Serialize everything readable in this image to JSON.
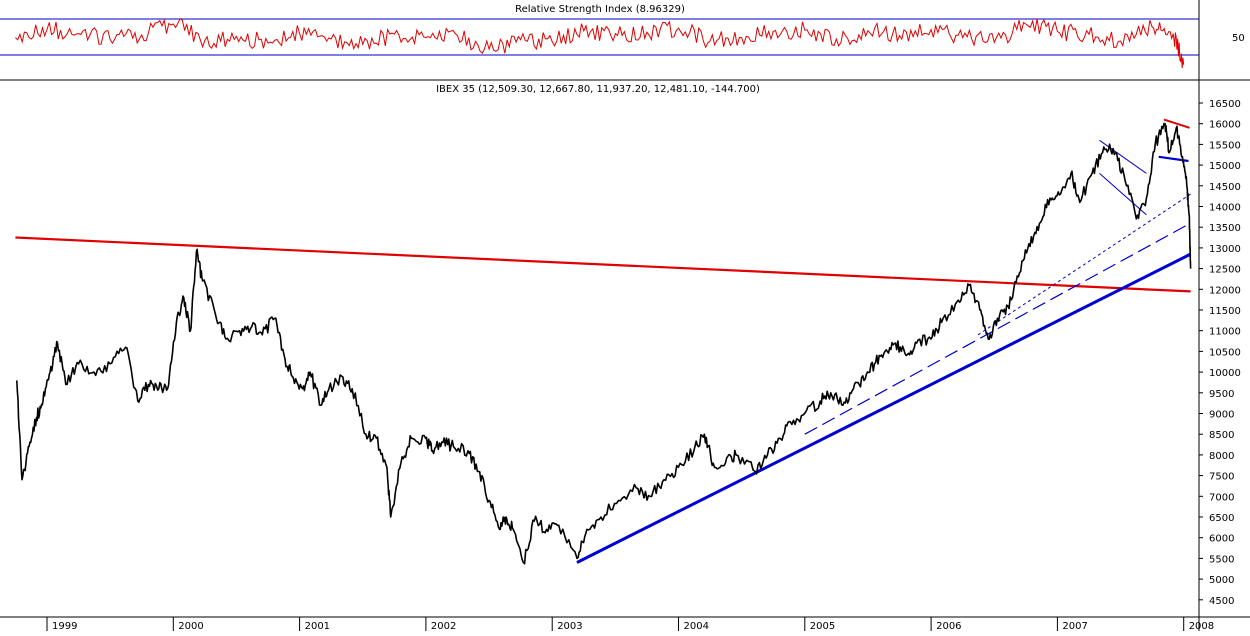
{
  "colors": {
    "background": "#ffffff",
    "price_line": "#000000",
    "rsi_line": "#e00000",
    "rsi_bands": "#0000c8",
    "resistance_line": "#e00000",
    "trendline": "#0000d0",
    "axis": "#000000"
  },
  "rsi_panel": {
    "title": "Relative Strength Index (8.96329)",
    "level_label": "50",
    "upper_band": 70,
    "lower_band": 30
  },
  "price_panel": {
    "title": "IBEX 35 (12,509.30, 12,667.80, 11,937.20, 12,481.10, -144.700)"
  },
  "chart_data": [
    {
      "type": "line",
      "title": "Relative Strength Index (8.96329)",
      "ylim": [
        0,
        100
      ],
      "y_ticks": [
        50
      ],
      "bands": [
        30,
        70
      ],
      "grid": false,
      "series": [
        {
          "approx_points": [
            [
              "1998-10",
              52
            ],
            [
              "1999-01",
              64
            ],
            [
              "1999-04",
              58
            ],
            [
              "1999-07",
              49
            ],
            [
              "1999-10",
              56
            ],
            [
              "2000-01",
              72
            ],
            [
              "2000-04",
              48
            ],
            [
              "2000-07",
              54
            ],
            [
              "2000-10",
              44
            ],
            [
              "2001-01",
              58
            ],
            [
              "2001-04",
              50
            ],
            [
              "2001-07",
              42
            ],
            [
              "2001-10",
              57
            ],
            [
              "2002-01",
              52
            ],
            [
              "2002-04",
              55
            ],
            [
              "2002-07",
              35
            ],
            [
              "2002-10",
              49
            ],
            [
              "2003-01",
              46
            ],
            [
              "2003-04",
              62
            ],
            [
              "2003-07",
              58
            ],
            [
              "2003-10",
              60
            ],
            [
              "2004-01",
              66
            ],
            [
              "2004-04",
              47
            ],
            [
              "2004-07",
              52
            ],
            [
              "2004-10",
              61
            ],
            [
              "2005-01",
              63
            ],
            [
              "2005-04",
              50
            ],
            [
              "2005-07",
              62
            ],
            [
              "2005-10",
              55
            ],
            [
              "2006-01",
              64
            ],
            [
              "2006-04",
              52
            ],
            [
              "2006-07",
              45
            ],
            [
              "2006-10",
              72
            ],
            [
              "2007-01",
              61
            ],
            [
              "2007-04",
              57
            ],
            [
              "2007-07",
              47
            ],
            [
              "2007-10",
              68
            ],
            [
              "2007-12",
              58
            ],
            [
              "2008-01",
              12
            ]
          ]
        }
      ]
    },
    {
      "type": "line",
      "title": "IBEX 35 (12,509.30, 12,667.80, 11,937.20, 12,481.10, -144.700)",
      "x_tick_labels": [
        "1999",
        "2000",
        "2001",
        "2002",
        "2003",
        "2004",
        "2005",
        "2006",
        "2007",
        "2008"
      ],
      "y_tick_labels": [
        "4500",
        "5000",
        "5500",
        "6000",
        "6500",
        "7000",
        "7500",
        "8000",
        "8500",
        "9000",
        "9500",
        "10000",
        "10500",
        "11000",
        "11500",
        "12000",
        "12500",
        "13000",
        "13500",
        "14000",
        "14500",
        "15000",
        "15500",
        "16000",
        "16500"
      ],
      "ylim": [
        4150,
        16900
      ],
      "grid": false,
      "series": [
        {
          "kind": "price",
          "points": [
            [
              "1998-10-05",
              9800
            ],
            [
              "1998-10-20",
              7400
            ],
            [
              "1998-11-10",
              8200
            ],
            [
              "1998-12-01",
              8900
            ],
            [
              "1998-12-20",
              9300
            ],
            [
              "1999-01-10",
              10000
            ],
            [
              "1999-02-01",
              10700
            ],
            [
              "1999-02-25",
              9700
            ],
            [
              "1999-04-01",
              10200
            ],
            [
              "1999-05-15",
              10000
            ],
            [
              "1999-07-01",
              10200
            ],
            [
              "1999-08-15",
              10600
            ],
            [
              "1999-09-20",
              9300
            ],
            [
              "1999-10-20",
              9700
            ],
            [
              "1999-11-20",
              9600
            ],
            [
              "1999-12-15",
              9600
            ],
            [
              "2000-01-10",
              11200
            ],
            [
              "2000-02-01",
              11800
            ],
            [
              "2000-02-20",
              11000
            ],
            [
              "2000-03-07",
              12900
            ],
            [
              "2000-03-25",
              12200
            ],
            [
              "2000-05-01",
              11400
            ],
            [
              "2000-06-01",
              10800
            ],
            [
              "2000-07-10",
              11000
            ],
            [
              "2000-08-15",
              11100
            ],
            [
              "2000-09-15",
              10900
            ],
            [
              "2000-10-20",
              11300
            ],
            [
              "2000-11-20",
              10300
            ],
            [
              "2000-12-10",
              9900
            ],
            [
              "2001-01-10",
              9600
            ],
            [
              "2001-02-01",
              10000
            ],
            [
              "2001-03-01",
              9200
            ],
            [
              "2001-03-20",
              9500
            ],
            [
              "2001-05-01",
              9900
            ],
            [
              "2001-06-01",
              9600
            ],
            [
              "2001-07-10",
              8500
            ],
            [
              "2001-08-10",
              8400
            ],
            [
              "2001-09-10",
              7700
            ],
            [
              "2001-09-21",
              6500
            ],
            [
              "2001-10-20",
              7800
            ],
            [
              "2001-11-20",
              8400
            ],
            [
              "2001-12-31",
              8400
            ],
            [
              "2002-01-20",
              8100
            ],
            [
              "2002-02-20",
              8300
            ],
            [
              "2002-03-20",
              8200
            ],
            [
              "2002-05-01",
              8100
            ],
            [
              "2002-06-01",
              7600
            ],
            [
              "2002-07-01",
              6900
            ],
            [
              "2002-08-01",
              6200
            ],
            [
              "2002-08-20",
              6500
            ],
            [
              "2002-09-10",
              6200
            ],
            [
              "2002-10-09",
              5400
            ],
            [
              "2002-11-10",
              6400
            ],
            [
              "2002-12-15",
              6200
            ],
            [
              "2003-01-20",
              6300
            ],
            [
              "2003-03-12",
              5500
            ],
            [
              "2003-04-10",
              6200
            ],
            [
              "2003-05-20",
              6500
            ],
            [
              "2003-07-10",
              6900
            ],
            [
              "2003-09-01",
              7200
            ],
            [
              "2003-10-10",
              7000
            ],
            [
              "2003-11-20",
              7400
            ],
            [
              "2003-12-31",
              7700
            ],
            [
              "2004-02-15",
              8100
            ],
            [
              "2004-03-15",
              8500
            ],
            [
              "2004-04-10",
              7800
            ],
            [
              "2004-05-15",
              7800
            ],
            [
              "2004-06-15",
              8000
            ],
            [
              "2004-08-10",
              7600
            ],
            [
              "2004-09-15",
              8000
            ],
            [
              "2004-10-20",
              8400
            ],
            [
              "2004-11-20",
              8800
            ],
            [
              "2004-12-31",
              9000
            ],
            [
              "2005-02-15",
              9300
            ],
            [
              "2005-03-15",
              9500
            ],
            [
              "2005-04-20",
              9200
            ],
            [
              "2005-05-20",
              9600
            ],
            [
              "2005-06-20",
              9800
            ],
            [
              "2005-07-20",
              10200
            ],
            [
              "2005-08-20",
              10500
            ],
            [
              "2005-09-20",
              10700
            ],
            [
              "2005-10-20",
              10400
            ],
            [
              "2005-11-20",
              10700
            ],
            [
              "2005-12-31",
              10800
            ],
            [
              "2006-02-01",
              11200
            ],
            [
              "2006-03-15",
              11700
            ],
            [
              "2006-04-20",
              12100
            ],
            [
              "2006-05-20",
              11500
            ],
            [
              "2006-06-14",
              10800
            ],
            [
              "2006-07-10",
              11300
            ],
            [
              "2006-08-10",
              11600
            ],
            [
              "2006-09-10",
              12300
            ],
            [
              "2006-10-10",
              13100
            ],
            [
              "2006-11-10",
              13600
            ],
            [
              "2006-12-10",
              14200
            ],
            [
              "2007-01-10",
              14300
            ],
            [
              "2007-02-10",
              14800
            ],
            [
              "2007-03-05",
              14100
            ],
            [
              "2007-04-10",
              14800
            ],
            [
              "2007-05-10",
              15300
            ],
            [
              "2007-06-10",
              15400
            ],
            [
              "2007-07-10",
              14800
            ],
            [
              "2007-08-16",
              13700
            ],
            [
              "2007-09-15",
              14200
            ],
            [
              "2007-10-10",
              15500
            ],
            [
              "2007-11-08",
              16000
            ],
            [
              "2007-11-20",
              15300
            ],
            [
              "2007-12-10",
              15900
            ],
            [
              "2007-12-28",
              15200
            ],
            [
              "2008-01-10",
              14500
            ],
            [
              "2008-01-17",
              13800
            ],
            [
              "2008-01-21",
              12500
            ]
          ]
        },
        {
          "kind": "resistance",
          "points": [
            [
              "1998-10-01",
              13250
            ],
            [
              "2008-01-21",
              11950
            ]
          ]
        },
        {
          "kind": "support",
          "points": [
            [
              "2003-03-12",
              5400
            ],
            [
              "2008-01-21",
              12850
            ]
          ]
        },
        {
          "kind": "support_dashed",
          "points": [
            [
              "2005-01-01",
              8500
            ],
            [
              "2008-01-21",
              13600
            ]
          ]
        },
        {
          "kind": "support_dotted",
          "points": [
            [
              "2006-05-15",
              10900
            ],
            [
              "2008-01-21",
              14300
            ]
          ]
        },
        {
          "kind": "upper_channel",
          "points": [
            [
              "2007-05-01",
              15600
            ],
            [
              "2007-09-15",
              14800
            ]
          ]
        },
        {
          "kind": "lower_channel",
          "points": [
            [
              "2007-05-01",
              14800
            ],
            [
              "2007-09-15",
              13800
            ]
          ]
        },
        {
          "kind": "top_resistance",
          "points": [
            [
              "2007-11-05",
              16100
            ],
            [
              "2008-01-18",
              15900
            ]
          ]
        },
        {
          "kind": "neckline",
          "points": [
            [
              "2007-10-20",
              15200
            ],
            [
              "2008-01-15",
              15100
            ]
          ]
        }
      ]
    }
  ]
}
